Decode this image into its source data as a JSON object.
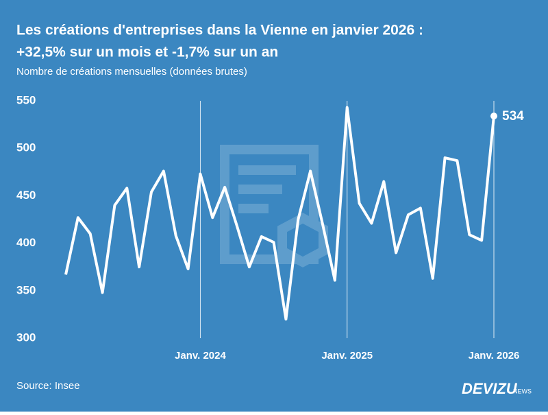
{
  "chart_data": {
    "type": "line",
    "title": [
      "Les créations d'entreprises dans la Vienne en janvier 2026 :",
      "+32,5% sur un mois et -1,7% sur un an"
    ],
    "subtitle": "Nombre de créations mensuelles (données brutes)",
    "source": "Source: Insee",
    "brand": "DEVIZU",
    "brand_suffix": "NEWS",
    "categories": [
      null,
      null,
      null,
      null,
      null,
      null,
      null,
      null,
      null,
      null,
      null,
      "Janv. 2024",
      null,
      null,
      null,
      null,
      null,
      null,
      null,
      null,
      null,
      null,
      null,
      "Janv. 2025",
      null,
      null,
      null,
      null,
      null,
      null,
      null,
      null,
      null,
      null,
      null,
      "Janv. 2026"
    ],
    "series": [
      {
        "color": "#ffffff",
        "values": [
          367,
          427,
          410,
          348,
          440,
          458,
          375,
          454,
          476,
          408,
          373,
          473,
          427,
          459,
          418,
          375,
          407,
          401,
          320,
          425,
          476,
          420,
          361,
          543,
          442,
          421,
          465,
          390,
          430,
          437,
          363,
          490,
          487,
          409,
          403,
          534
        ]
      }
    ],
    "ylim": [
      300,
      550
    ],
    "yticks": [
      300,
      350,
      400,
      450,
      500,
      550
    ],
    "background": "#3b87c1"
  }
}
